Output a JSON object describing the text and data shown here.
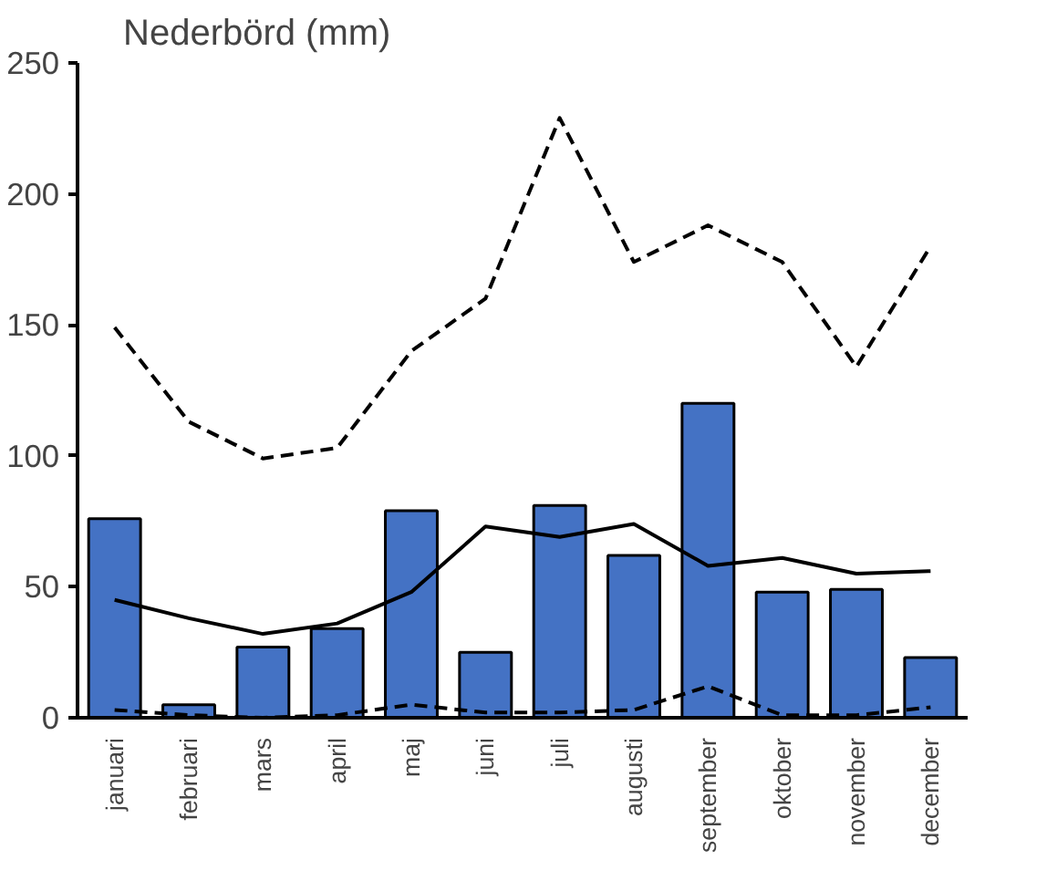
{
  "chart_data": {
    "type": "bar",
    "title": "Nederbörd (mm)",
    "categories": [
      "januari",
      "februari",
      "mars",
      "april",
      "maj",
      "juni",
      "juli",
      "augusti",
      "september",
      "oktober",
      "november",
      "december"
    ],
    "series": [
      {
        "color": "#4472c4",
        "values": [
          76,
          5,
          27,
          34,
          79,
          25,
          81,
          62,
          120,
          48,
          49,
          23
        ]
      },
      {
        "type": "line",
        "color": "#000000",
        "line_style": "solid",
        "values": [
          45,
          38,
          32,
          36,
          48,
          73,
          69,
          74,
          58,
          61,
          55,
          56
        ]
      },
      {
        "type": "line",
        "color": "#000000",
        "line_style": "dashed",
        "values": [
          149,
          113,
          99,
          103,
          140,
          160,
          229,
          174,
          188,
          174,
          134,
          180
        ]
      },
      {
        "type": "line",
        "color": "#000000",
        "line_style": "dashed",
        "values": [
          3,
          1,
          0,
          1,
          5,
          2,
          2,
          3,
          12,
          1,
          1,
          4
        ]
      }
    ],
    "ylim": [
      0,
      250
    ],
    "yticks": [
      0,
      50,
      100,
      150,
      200,
      250
    ],
    "grid": false,
    "marker": "none"
  }
}
